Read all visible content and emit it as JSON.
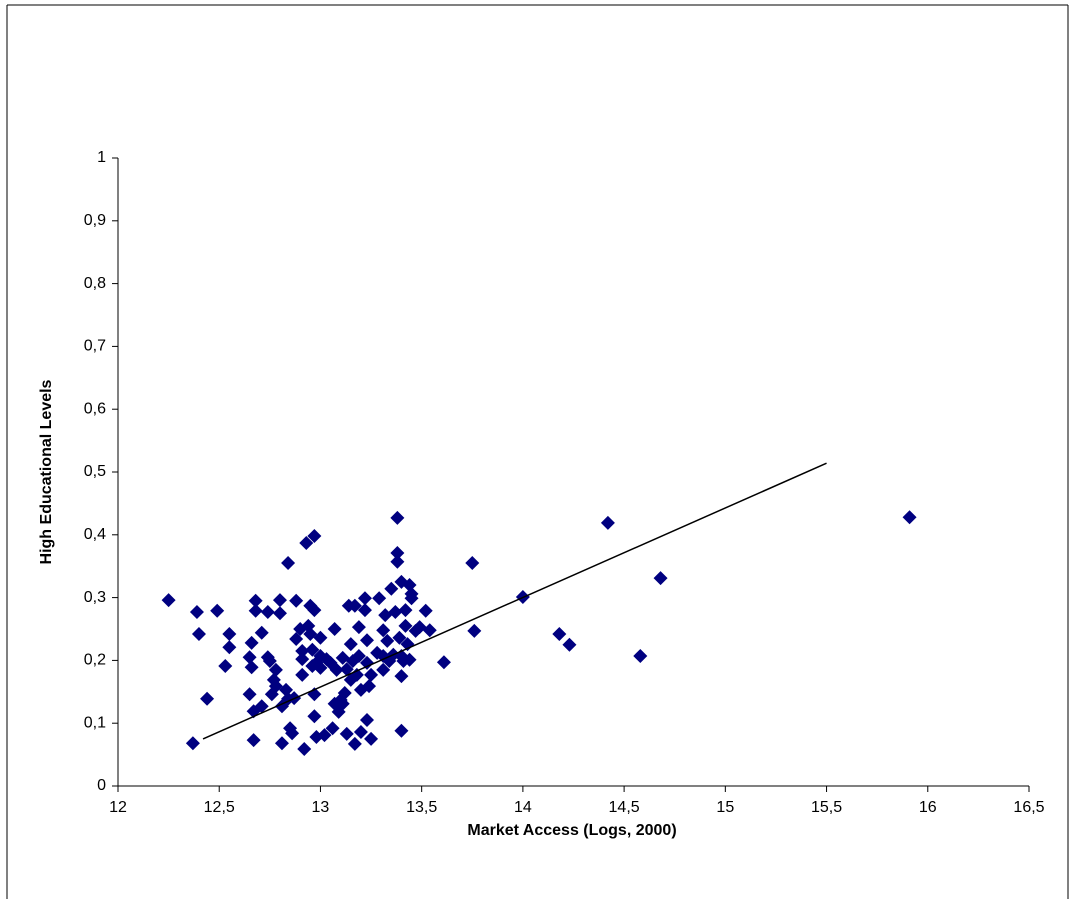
{
  "chart_data": {
    "type": "scatter",
    "x_label": "Market Access (Logs, 2000)",
    "y_label": "High Educational Levels",
    "xlim": [
      12,
      16.5
    ],
    "ylim": [
      0,
      1
    ],
    "xticks": [
      12,
      {
        "value": 12.5,
        "label": "12,5"
      },
      13,
      {
        "value": 13.5,
        "label": "13,5"
      },
      14,
      {
        "value": 14.5,
        "label": "14,5"
      },
      15,
      {
        "value": 15.5,
        "label": "15,5"
      },
      16,
      {
        "value": 16.5,
        "label": "16,5"
      }
    ],
    "yticks": [
      0,
      {
        "value": 0.1,
        "label": "0,1"
      },
      {
        "value": 0.2,
        "label": "0,2"
      },
      {
        "value": 0.3,
        "label": "0,3"
      },
      {
        "value": 0.4,
        "label": "0,4"
      },
      {
        "value": 0.5,
        "label": "0,5"
      },
      {
        "value": 0.6,
        "label": "0,6"
      },
      {
        "value": 0.7,
        "label": "0,7"
      },
      {
        "value": 0.8,
        "label": "0,8"
      },
      {
        "value": 0.9,
        "label": "0,9"
      },
      1
    ],
    "grid": false,
    "series": [
      {
        "color": "#000080",
        "x": [
          12.25,
          12.39,
          12.4,
          12.37,
          12.44,
          12.49,
          12.55,
          12.55,
          12.53,
          12.65,
          12.66,
          12.65,
          12.66,
          12.67,
          12.67,
          12.68,
          12.68,
          12.71,
          12.71,
          12.74,
          12.74,
          12.75,
          12.76,
          12.77,
          12.78,
          12.78,
          12.8,
          12.8,
          12.81,
          12.81,
          12.83,
          12.84,
          12.85,
          12.86,
          12.87,
          12.84,
          12.88,
          12.88,
          12.9,
          12.91,
          12.91,
          12.91,
          12.92,
          12.93,
          12.95,
          12.94,
          12.95,
          12.96,
          12.96,
          12.97,
          12.97,
          12.97,
          12.97,
          12.98,
          12.98,
          13.0,
          13.0,
          13.0,
          13.02,
          13.03,
          13.05,
          13.06,
          13.07,
          13.07,
          13.08,
          13.09,
          13.1,
          13.11,
          13.11,
          13.12,
          13.13,
          13.13,
          13.14,
          13.15,
          13.15,
          13.16,
          13.17,
          13.17,
          13.18,
          13.19,
          13.19,
          13.2,
          13.2,
          13.22,
          13.22,
          13.23,
          13.23,
          13.23,
          13.24,
          13.25,
          13.25,
          13.28,
          13.29,
          13.31,
          13.31,
          13.31,
          13.32,
          13.33,
          13.34,
          13.35,
          13.36,
          13.37,
          13.38,
          13.38,
          13.38,
          13.4,
          13.39,
          13.4,
          13.4,
          13.4,
          13.41,
          13.42,
          13.42,
          13.43,
          13.44,
          13.44,
          13.45,
          13.45,
          13.47,
          13.49,
          13.52,
          13.54,
          13.61,
          13.75,
          13.76,
          14.0,
          14.18,
          14.23,
          14.42,
          14.58,
          14.68,
          15.91
        ],
        "y": [
          0.296,
          0.277,
          0.242,
          0.068,
          0.139,
          0.279,
          0.242,
          0.221,
          0.191,
          0.146,
          0.189,
          0.205,
          0.228,
          0.119,
          0.073,
          0.295,
          0.279,
          0.244,
          0.127,
          0.277,
          0.205,
          0.199,
          0.146,
          0.169,
          0.185,
          0.159,
          0.296,
          0.275,
          0.127,
          0.068,
          0.153,
          0.139,
          0.092,
          0.084,
          0.14,
          0.355,
          0.295,
          0.234,
          0.25,
          0.215,
          0.202,
          0.177,
          0.059,
          0.387,
          0.287,
          0.255,
          0.242,
          0.217,
          0.191,
          0.146,
          0.111,
          0.398,
          0.28,
          0.196,
          0.078,
          0.207,
          0.236,
          0.188,
          0.081,
          0.202,
          0.196,
          0.092,
          0.131,
          0.25,
          0.185,
          0.118,
          0.137,
          0.131,
          0.204,
          0.148,
          0.186,
          0.083,
          0.287,
          0.226,
          0.169,
          0.199,
          0.287,
          0.067,
          0.177,
          0.253,
          0.207,
          0.153,
          0.086,
          0.28,
          0.299,
          0.105,
          0.232,
          0.196,
          0.159,
          0.177,
          0.075,
          0.212,
          0.299,
          0.207,
          0.248,
          0.185,
          0.272,
          0.231,
          0.199,
          0.314,
          0.209,
          0.277,
          0.427,
          0.371,
          0.357,
          0.325,
          0.236,
          0.207,
          0.175,
          0.088,
          0.199,
          0.255,
          0.28,
          0.226,
          0.201,
          0.32,
          0.299,
          0.306,
          0.247,
          0.253,
          0.279,
          0.248,
          0.197,
          0.355,
          0.247,
          0.301,
          0.242,
          0.225,
          0.419,
          0.207,
          0.331,
          0.428
        ]
      }
    ],
    "trendline": {
      "color": "#000000",
      "x": [
        12.42,
        15.5
      ],
      "y": [
        0.075,
        0.514
      ]
    }
  }
}
